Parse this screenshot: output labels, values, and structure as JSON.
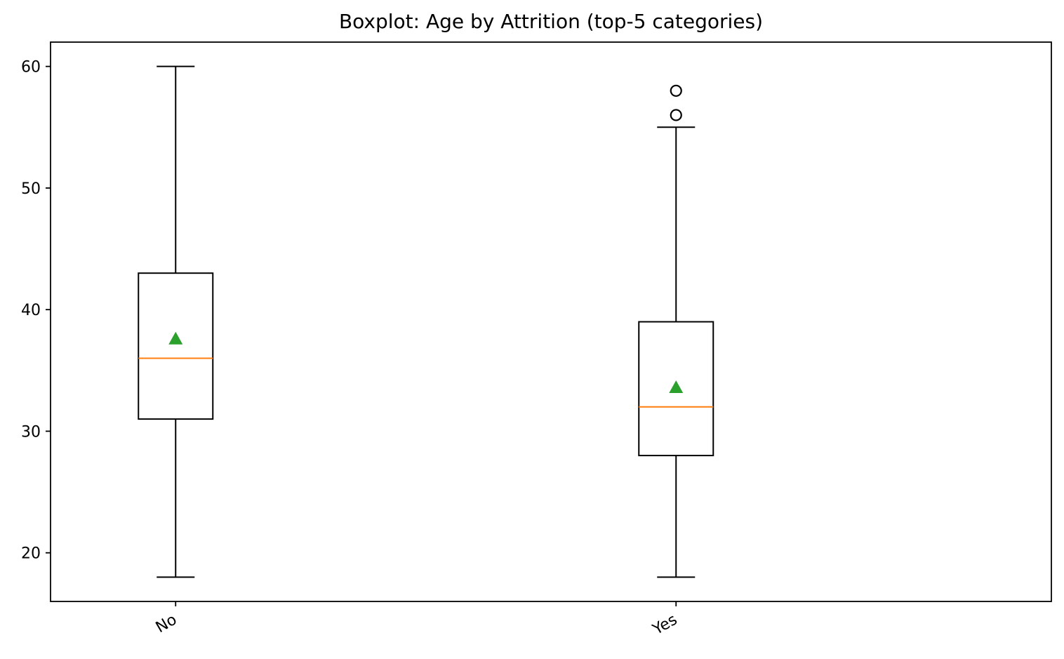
{
  "chart_data": {
    "type": "boxplot",
    "title": "Boxplot: Age by Attrition (top-5 categories)",
    "xlabel": "",
    "ylabel": "",
    "categories": [
      "No",
      "Yes"
    ],
    "ylim": [
      16,
      62
    ],
    "yticks": [
      20,
      30,
      40,
      50,
      60
    ],
    "boxes": [
      {
        "category": "No",
        "whisker_low": 18,
        "q1": 31,
        "median": 36,
        "q3": 43,
        "whisker_high": 60,
        "mean": 37.6,
        "outliers": []
      },
      {
        "category": "Yes",
        "whisker_low": 18,
        "q1": 28,
        "median": 32,
        "q3": 39,
        "whisker_high": 55,
        "mean": 33.6,
        "outliers": [
          56,
          58
        ]
      }
    ],
    "grid": false,
    "colors": {
      "box": "#000000",
      "median": "#ff7f0e",
      "mean": "#2ca02c",
      "outlier": "#000000"
    }
  }
}
